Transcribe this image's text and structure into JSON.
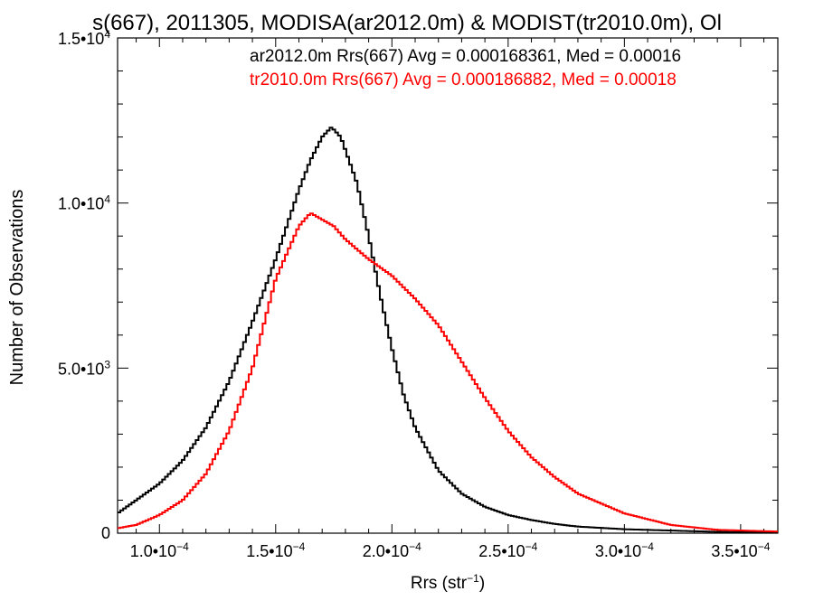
{
  "chart_data": {
    "type": "histogram-step",
    "title": "s(667), 2011305, MODISA(ar2012.0m) & MODIST(tr2010.0m), Ol",
    "xlabel": "Rrs (str",
    "xlabel_sup": "−1",
    "xlabel_close": ")",
    "ylabel": "Number of Observations",
    "xlim": [
      8.2e-05,
      0.000366
    ],
    "ylim": [
      0,
      15000
    ],
    "x_ticks": [
      {
        "v": 0.0001,
        "base": "1.0•10",
        "exp": "−4"
      },
      {
        "v": 0.00015,
        "base": "1.5•10",
        "exp": "−4"
      },
      {
        "v": 0.0002,
        "base": "2.0•10",
        "exp": "−4"
      },
      {
        "v": 0.00025,
        "base": "2.5•10",
        "exp": "−4"
      },
      {
        "v": 0.0003,
        "base": "3.0•10",
        "exp": "−4"
      },
      {
        "v": 0.00035,
        "base": "3.5•10",
        "exp": "−4"
      }
    ],
    "y_ticks": [
      {
        "v": 0,
        "base": "0",
        "exp": ""
      },
      {
        "v": 5000,
        "base": "5.0•10",
        "exp": "3"
      },
      {
        "v": 10000,
        "base": "1.0•10",
        "exp": "4"
      },
      {
        "v": 15000,
        "base": "1.5•10",
        "exp": "4"
      }
    ],
    "legend": [
      {
        "text": "ar2012.0m Rrs(667) Avg = 0.000168361, Med = 0.00016",
        "color": "#000000"
      },
      {
        "text": "tr2010.0m Rrs(667) Avg = 0.000186882, Med = 0.00018",
        "color": "#ff0000"
      }
    ],
    "series": [
      {
        "color": "#000000",
        "x": [
          8.2e-05,
          9e-05,
          0.0001,
          0.00011,
          0.00012,
          0.00013,
          0.00014,
          0.00015,
          0.00016,
          0.000165,
          0.00017,
          0.000174,
          0.000178,
          0.000185,
          0.00019,
          0.000195,
          0.0002,
          0.000205,
          0.00021,
          0.00022,
          0.00023,
          0.00024,
          0.00025,
          0.00026,
          0.00027,
          0.00028,
          0.0003,
          0.00032,
          0.00034,
          0.000366
        ],
        "y": [
          600,
          1000,
          1500,
          2200,
          3200,
          4600,
          6400,
          8300,
          10400,
          11300,
          12000,
          12300,
          12000,
          10600,
          9000,
          7200,
          5600,
          4200,
          3200,
          1900,
          1200,
          800,
          550,
          400,
          280,
          200,
          120,
          80,
          40,
          20
        ]
      },
      {
        "color": "#ff0000",
        "x": [
          8.2e-05,
          9e-05,
          0.0001,
          0.00011,
          0.00012,
          0.00013,
          0.00014,
          0.00015,
          0.00016,
          0.000165,
          0.00017,
          0.000175,
          0.00018,
          0.00019,
          0.0002,
          0.00021,
          0.00022,
          0.00023,
          0.00024,
          0.00025,
          0.00026,
          0.00027,
          0.00028,
          0.0003,
          0.00032,
          0.00034,
          0.000366
        ],
        "y": [
          150,
          250,
          550,
          1000,
          1800,
          3100,
          5000,
          7700,
          9300,
          9700,
          9500,
          9300,
          8900,
          8300,
          7800,
          7100,
          6300,
          5200,
          4100,
          3100,
          2300,
          1700,
          1200,
          600,
          250,
          100,
          50
        ]
      }
    ]
  }
}
